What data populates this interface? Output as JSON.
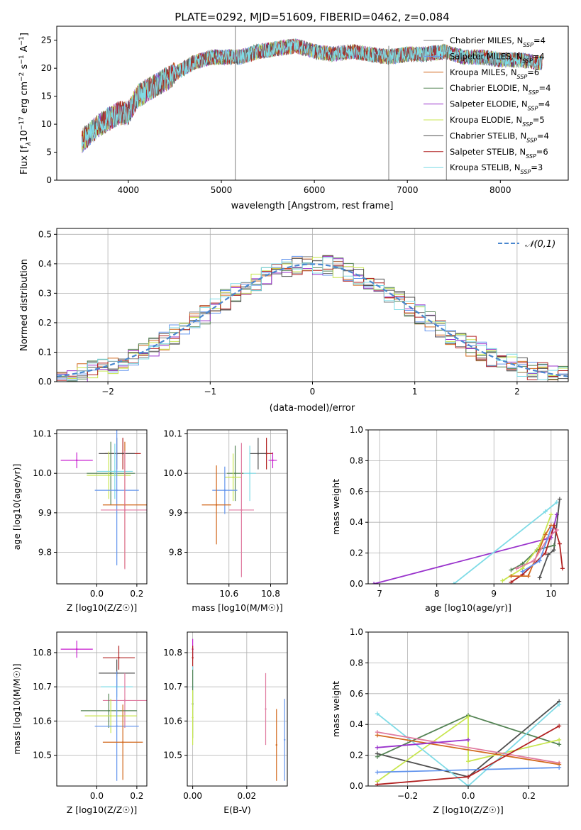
{
  "chart_data": [
    {
      "id": "spectrum",
      "type": "line",
      "title": "PLATE=0292, MJD=51609, FIBERID=0462, z=0.084",
      "xlabel": "wavelength [Angstrom, rest frame]",
      "ylabel_parts": [
        "Flux [f",
        "λ",
        "10",
        "−17",
        " erg cm",
        "−2",
        " s",
        "−1",
        " A",
        "−1",
        "]"
      ],
      "xlim": [
        3230,
        8730
      ],
      "ylim": [
        0,
        27.5
      ],
      "xticks": [
        4000,
        5000,
        6000,
        7000,
        8000
      ],
      "yticks": [
        0,
        5,
        10,
        15,
        20,
        25
      ],
      "grid": false,
      "legend_placement": "lower-right",
      "series": [
        {
          "name": "Chabrier MILES, N_SSP=4",
          "base": "Chabrier MILES, N",
          "sub": "SSP",
          "tail": "=4",
          "color": "#808080"
        },
        {
          "name": "Salpeter MILES, N_SSP=4",
          "base": "Salpeter MILES, N",
          "sub": "SSP",
          "tail": "=4",
          "color": "#6495ed"
        },
        {
          "name": "Kroupa MILES, N_SSP=6",
          "base": "Kroupa MILES, N",
          "sub": "SSP",
          "tail": "=6",
          "color": "#d2691e"
        },
        {
          "name": "Chabrier ELODIE, N_SSP=4",
          "base": "Chabrier ELODIE, N",
          "sub": "SSP",
          "tail": "=4",
          "color": "#548354"
        },
        {
          "name": "Salpeter ELODIE, N_SSP=4",
          "base": "Salpeter ELODIE, N",
          "sub": "SSP",
          "tail": "=4",
          "color": "#9932cc"
        },
        {
          "name": "Kroupa ELODIE, N_SSP=5",
          "base": "Kroupa ELODIE, N",
          "sub": "SSP",
          "tail": "=5",
          "color": "#c8e650"
        },
        {
          "name": "Chabrier STELIB, N_SSP=4",
          "base": "Chabrier STELIB, N",
          "sub": "SSP",
          "tail": "=4",
          "color": "#505050"
        },
        {
          "name": "Salpeter STELIB, N_SSP=6",
          "base": "Salpeter STELIB, N",
          "sub": "SSP",
          "tail": "=6",
          "color": "#b22222"
        },
        {
          "name": "Kroupa STELIB, N_SSP=3",
          "base": "Kroupa STELIB, N",
          "sub": "SSP",
          "tail": "=3",
          "color": "#7fdbe6"
        }
      ],
      "data_curve": {
        "x": [
          3500,
          3700,
          3900,
          4000,
          4100,
          4300,
          4500,
          4700,
          4900,
          5000,
          5200,
          5400,
          5600,
          5800,
          6000,
          6200,
          6400,
          6600,
          6800,
          7000,
          7200,
          7400,
          7600,
          7800,
          8000,
          8200,
          8400
        ],
        "y": [
          7,
          10,
          12,
          12,
          15,
          17,
          19,
          21,
          22,
          22,
          22,
          23,
          23.5,
          24,
          23,
          22.5,
          23,
          22.5,
          22,
          22.5,
          22.5,
          23,
          22,
          22,
          21.5,
          21.5,
          21
        ]
      },
      "spikes": [
        {
          "x": 5150,
          "y0": 0,
          "y1": 27.5
        },
        {
          "x": 6800,
          "y0": 0,
          "y1": 24
        },
        {
          "x": 7420,
          "y0": 0,
          "y1": 23
        }
      ]
    },
    {
      "id": "residuals",
      "type": "line",
      "xlabel": "(data-model)/error",
      "ylabel": "Normed distribution",
      "xlim": [
        -2.5,
        2.5
      ],
      "ylim": [
        0,
        0.52
      ],
      "xticks": [
        -2,
        -1,
        0,
        1,
        2
      ],
      "xtick_labels": [
        "−2",
        "−1",
        "0",
        "1",
        "2"
      ],
      "yticks": [
        0,
        0.1,
        0.2,
        0.3,
        0.4,
        0.5
      ],
      "ytick_labels": [
        "0.0",
        "0.1",
        "0.2",
        "0.3",
        "0.4",
        "0.5"
      ],
      "grid": true,
      "legend_placement": "top-right",
      "legend": "𝒩(0,1)",
      "normal_color": "#4a87cf"
    },
    {
      "id": "age-vs-Z",
      "type": "scatter",
      "xlabel": "Z [log10(Z/Z☉)]",
      "ylabel": "age [log10(age/yr)]",
      "xlim": [
        -0.2,
        0.25
      ],
      "ylim": [
        9.72,
        10.11
      ],
      "xticks": [
        0.0,
        0.2
      ],
      "xtick_labels": [
        "0.0",
        "0.2"
      ],
      "yticks": [
        9.8,
        9.9,
        10.0,
        10.1
      ],
      "ytick_labels": [
        "9.8",
        "9.9",
        "10.0",
        "10.1"
      ],
      "grid": true,
      "points": [
        {
          "x": -0.1,
          "y": 10.033,
          "xerr": 0.08,
          "yerr": 0.02,
          "color": "#c71ccf"
        },
        {
          "x": 0.13,
          "y": 10.05,
          "xerr": 0.09,
          "yerr": 0.04,
          "color": "#b22222"
        },
        {
          "x": 0.1,
          "y": 10.05,
          "xerr": 0.09,
          "yerr": 0.04,
          "color": "#505050"
        },
        {
          "x": 0.07,
          "y": 10.0,
          "xerr": 0.12,
          "yerr": 0.08,
          "color": "#548354"
        },
        {
          "x": 0.06,
          "y": 9.995,
          "xerr": 0.11,
          "yerr": 0.06,
          "color": "#c8e650"
        },
        {
          "x": 0.09,
          "y": 10.005,
          "xerr": 0.09,
          "yerr": 0.07,
          "color": "#7fdbe6"
        },
        {
          "x": 0.1,
          "y": 9.957,
          "xerr": 0.11,
          "yerr": 0.19,
          "color": "#6495ed"
        },
        {
          "x": 0.14,
          "y": 9.92,
          "xerr": 0.11,
          "yerr": 0.16,
          "color": "#d2691e"
        },
        {
          "x": 0.14,
          "y": 9.907,
          "xerr": 0.12,
          "yerr": 0.15,
          "color": "#e07ba0"
        }
      ]
    },
    {
      "id": "age-vs-mass",
      "type": "scatter",
      "xlabel": "mass [log10(M/M☉)]",
      "ylabel": "",
      "xlim": [
        10.4,
        10.88
      ],
      "ylim": [
        9.72,
        10.11
      ],
      "xticks": [
        10.6,
        10.8
      ],
      "xtick_labels": [
        "10.6",
        "10.8"
      ],
      "yticks": [
        9.8,
        9.9,
        10.0,
        10.1
      ],
      "ytick_labels": [
        "9.8",
        "9.9",
        "10.0",
        "10.1"
      ],
      "grid": true,
      "points": [
        {
          "x": 10.81,
          "y": 10.033,
          "xerr": 0.02,
          "yerr": 0.02,
          "color": "#c71ccf"
        },
        {
          "x": 10.78,
          "y": 10.05,
          "xerr": 0.03,
          "yerr": 0.04,
          "color": "#b22222"
        },
        {
          "x": 10.74,
          "y": 10.05,
          "xerr": 0.04,
          "yerr": 0.04,
          "color": "#505050"
        },
        {
          "x": 10.63,
          "y": 10.0,
          "xerr": 0.04,
          "yerr": 0.07,
          "color": "#548354"
        },
        {
          "x": 10.62,
          "y": 9.99,
          "xerr": 0.04,
          "yerr": 0.06,
          "color": "#c8e650"
        },
        {
          "x": 10.7,
          "y": 10.0,
          "xerr": 0.03,
          "yerr": 0.07,
          "color": "#7fdbe6"
        },
        {
          "x": 10.58,
          "y": 9.957,
          "xerr": 0.06,
          "yerr": 0.06,
          "color": "#6495ed"
        },
        {
          "x": 10.54,
          "y": 9.92,
          "xerr": 0.07,
          "yerr": 0.1,
          "color": "#d2691e"
        },
        {
          "x": 10.66,
          "y": 9.907,
          "xerr": 0.06,
          "yerr": 0.17,
          "color": "#e07ba0"
        }
      ]
    },
    {
      "id": "massweight-vs-age",
      "type": "line",
      "xlabel": "age [log10(age/yr)]",
      "ylabel": "mass weight",
      "xlim": [
        6.8,
        10.3
      ],
      "ylim": [
        0,
        1.0
      ],
      "xticks": [
        7,
        8,
        9,
        10
      ],
      "xtick_labels": [
        "7",
        "8",
        "9",
        "10"
      ],
      "yticks": [
        0,
        0.2,
        0.4,
        0.6,
        0.8,
        1.0
      ],
      "ytick_labels": [
        "0.0",
        "0.2",
        "0.4",
        "0.6",
        "0.8",
        "1.0"
      ],
      "grid": true,
      "series": [
        {
          "color": "#9932cc",
          "x": [
            6.9,
            10.0,
            10.1
          ],
          "y": [
            0.0,
            0.3,
            0.45
          ]
        },
        {
          "color": "#7fdbe6",
          "x": [
            8.3,
            9.9,
            10.1
          ],
          "y": [
            0.0,
            0.47,
            0.53
          ]
        },
        {
          "color": "#505050",
          "x": [
            9.8,
            9.95,
            10.05,
            10.15
          ],
          "y": [
            0.04,
            0.19,
            0.22,
            0.55
          ]
        },
        {
          "color": "#548354",
          "x": [
            9.3,
            9.5,
            9.75,
            10.05
          ],
          "y": [
            0.09,
            0.13,
            0.22,
            0.25
          ]
        },
        {
          "color": "#b22222",
          "x": [
            9.3,
            9.5,
            9.9,
            10.05,
            10.15,
            10.2
          ],
          "y": [
            0.01,
            0.06,
            0.2,
            0.38,
            0.26,
            0.1
          ]
        },
        {
          "color": "#c8e650",
          "x": [
            9.15,
            9.5,
            9.8,
            10.0
          ],
          "y": [
            0.02,
            0.1,
            0.25,
            0.45
          ]
        },
        {
          "color": "#d2691e",
          "x": [
            9.3,
            9.6,
            9.9,
            10.0
          ],
          "y": [
            0.05,
            0.05,
            0.32,
            0.38
          ]
        },
        {
          "color": "#e07ba0",
          "x": [
            9.4,
            9.7,
            9.95,
            10.1
          ],
          "y": [
            0.1,
            0.15,
            0.3,
            0.35
          ]
        },
        {
          "color": "#6495ed",
          "x": [
            9.5,
            9.8,
            10.0
          ],
          "y": [
            0.08,
            0.15,
            0.36
          ]
        }
      ]
    },
    {
      "id": "mass-vs-Z",
      "type": "scatter",
      "xlabel": "Z [log10(Z/Z☉)]",
      "ylabel": "mass [log10(M/M☉)]",
      "xlim": [
        -0.2,
        0.25
      ],
      "ylim": [
        10.41,
        10.86
      ],
      "xticks": [
        0.0,
        0.2
      ],
      "xtick_labels": [
        "0.0",
        "0.2"
      ],
      "yticks": [
        10.5,
        10.6,
        10.7,
        10.8
      ],
      "ytick_labels": [
        "10.5",
        "10.6",
        "10.7",
        "10.8"
      ],
      "grid": true,
      "points": [
        {
          "x": -0.1,
          "y": 10.81,
          "xerr": 0.08,
          "yerr": 0.025,
          "color": "#c71ccf"
        },
        {
          "x": 0.11,
          "y": 10.785,
          "xerr": 0.08,
          "yerr": 0.035,
          "color": "#b22222"
        },
        {
          "x": 0.1,
          "y": 10.74,
          "xerr": 0.09,
          "yerr": 0.04,
          "color": "#505050"
        },
        {
          "x": 0.1,
          "y": 10.7,
          "xerr": 0.08,
          "yerr": 0.03,
          "color": "#7fdbe6"
        },
        {
          "x": 0.14,
          "y": 10.66,
          "xerr": 0.11,
          "yerr": 0.08,
          "color": "#e07ba0"
        },
        {
          "x": 0.06,
          "y": 10.63,
          "xerr": 0.14,
          "yerr": 0.05,
          "color": "#548354"
        },
        {
          "x": 0.07,
          "y": 10.615,
          "xerr": 0.13,
          "yerr": 0.05,
          "color": "#c8e650"
        },
        {
          "x": 0.1,
          "y": 10.585,
          "xerr": 0.11,
          "yerr": 0.16,
          "color": "#6495ed"
        },
        {
          "x": 0.13,
          "y": 10.538,
          "xerr": 0.1,
          "yerr": 0.11,
          "color": "#d2691e"
        }
      ]
    },
    {
      "id": "mass-vs-ebv",
      "type": "scatter",
      "xlabel": "E(B-V)",
      "ylabel": "",
      "xlim": [
        -0.002,
        0.035
      ],
      "ylim": [
        10.41,
        10.86
      ],
      "xticks": [
        0.0,
        0.02
      ],
      "xtick_labels": [
        "0.00",
        "0.02"
      ],
      "yticks": [
        10.5,
        10.6,
        10.7,
        10.8
      ],
      "ytick_labels": [
        "10.5",
        "10.6",
        "10.7",
        "10.8"
      ],
      "grid": true,
      "points": [
        {
          "x": 0.0,
          "y": 10.81,
          "xerr": 0,
          "yerr": 0.03,
          "color": "#c71ccf"
        },
        {
          "x": 0.0,
          "y": 10.785,
          "xerr": 0,
          "yerr": 0.035,
          "color": "#b22222"
        },
        {
          "x": 0.0,
          "y": 10.7,
          "xerr": 0,
          "yerr": 0.06,
          "color": "#7fdbe6"
        },
        {
          "x": 0.0,
          "y": 10.65,
          "xerr": 0,
          "yerr": 0.1,
          "color": "#548354"
        },
        {
          "x": 0.0,
          "y": 10.61,
          "xerr": 0,
          "yerr": 0.08,
          "color": "#c8e650"
        },
        {
          "x": 0.027,
          "y": 10.635,
          "xerr": 0,
          "yerr": 0.105,
          "color": "#e07ba0"
        },
        {
          "x": 0.031,
          "y": 10.53,
          "xerr": 0,
          "yerr": 0.105,
          "color": "#d2691e"
        },
        {
          "x": 0.034,
          "y": 10.545,
          "xerr": 0,
          "yerr": 0.12,
          "color": "#6495ed"
        }
      ]
    },
    {
      "id": "massweight-vs-Z",
      "type": "line",
      "xlabel": "Z [log10(Z/Z☉)]",
      "ylabel": "mass weight",
      "xlim": [
        -0.33,
        0.33
      ],
      "ylim": [
        0,
        1.0
      ],
      "xticks": [
        -0.2,
        0.0,
        0.2
      ],
      "xtick_labels": [
        "−0.2",
        "0.0",
        "0.2"
      ],
      "yticks": [
        0,
        0.2,
        0.4,
        0.6,
        0.8,
        1.0
      ],
      "ytick_labels": [
        "0.0",
        "0.2",
        "0.4",
        "0.6",
        "0.8",
        "1.0"
      ],
      "grid": true,
      "series": [
        {
          "color": "#505050",
          "x": [
            -0.3,
            0.0,
            0.3
          ],
          "y": [
            0.21,
            0.06,
            0.55
          ]
        },
        {
          "color": "#548354",
          "x": [
            -0.3,
            0.0,
            0.3
          ],
          "y": [
            0.19,
            0.46,
            0.27
          ]
        },
        {
          "color": "#c8e650",
          "x": [
            -0.3,
            0.0,
            0.0,
            0.3
          ],
          "y": [
            0.03,
            0.45,
            0.16,
            0.3
          ]
        },
        {
          "color": "#7fdbe6",
          "x": [
            -0.3,
            0.0,
            0.3
          ],
          "y": [
            0.47,
            0.0,
            0.53
          ]
        },
        {
          "color": "#e07ba0",
          "x": [
            -0.3,
            0.3
          ],
          "y": [
            0.35,
            0.15
          ]
        },
        {
          "color": "#d2691e",
          "x": [
            -0.3,
            0.3
          ],
          "y": [
            0.33,
            0.14
          ]
        },
        {
          "color": "#9932cc",
          "x": [
            -0.3,
            0.0
          ],
          "y": [
            0.25,
            0.3
          ]
        },
        {
          "color": "#6495ed",
          "x": [
            -0.3,
            0.3
          ],
          "y": [
            0.09,
            0.12
          ]
        },
        {
          "color": "#b22222",
          "x": [
            -0.3,
            0.0,
            0.3
          ],
          "y": [
            0.01,
            0.06,
            0.39
          ]
        }
      ]
    }
  ]
}
